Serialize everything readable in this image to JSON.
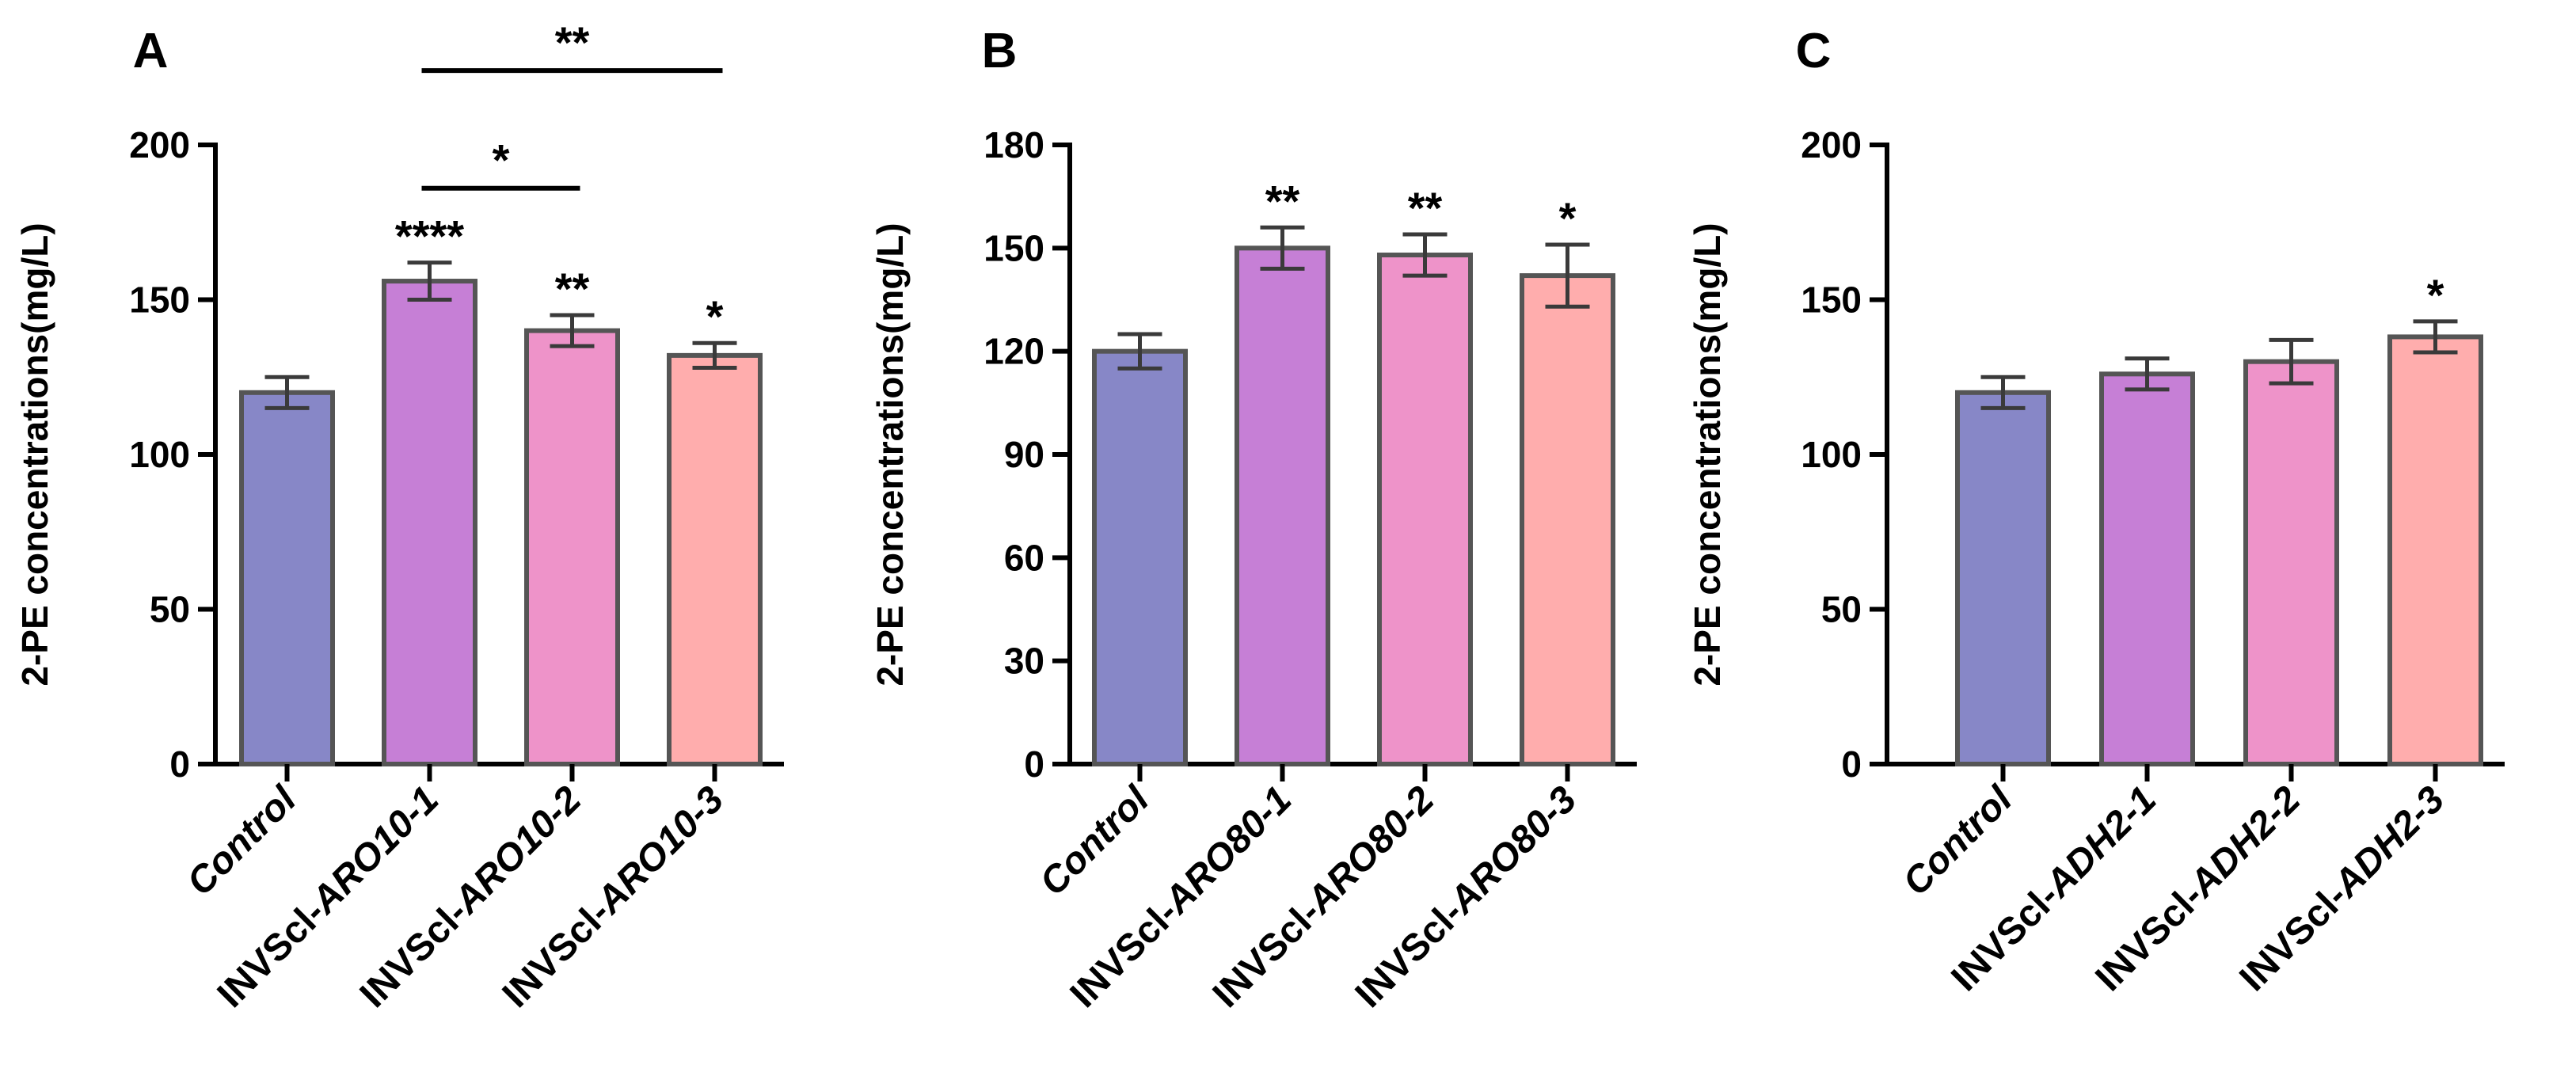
{
  "chart_data": [
    {
      "panel": "A",
      "type": "bar",
      "ylabel": "2-PE concentrations(mg/L)",
      "ylim": [
        0,
        200
      ],
      "yticks": [
        0,
        50,
        100,
        150,
        200
      ],
      "categories": [
        {
          "prefix": "",
          "gene": "Control"
        },
        {
          "prefix": "INVScl-",
          "gene": "ARO10-1"
        },
        {
          "prefix": "INVScl-",
          "gene": "ARO10-2"
        },
        {
          "prefix": "INVScl-",
          "gene": "ARO10-3"
        }
      ],
      "values": [
        120,
        156,
        140,
        132
      ],
      "errors": [
        5,
        6,
        5,
        4
      ],
      "significance": [
        "",
        "****",
        "**",
        "*"
      ],
      "colors": [
        "#8787c7",
        "#c67fd6",
        "#ee93c9",
        "#ffadad"
      ],
      "comparisons": [
        {
          "from": 1,
          "to": 2,
          "label": "*",
          "y": 186
        },
        {
          "from": 1,
          "to": 3,
          "label": "**",
          "y": 224
        }
      ]
    },
    {
      "panel": "B",
      "type": "bar",
      "ylabel": "2-PE concentrations(mg/L)",
      "ylim": [
        0,
        180
      ],
      "yticks": [
        0,
        30,
        60,
        90,
        120,
        150,
        180
      ],
      "categories": [
        {
          "prefix": "",
          "gene": "Control"
        },
        {
          "prefix": "INVScl-",
          "gene": "ARO80-1"
        },
        {
          "prefix": "INVScl-",
          "gene": "ARO80-2"
        },
        {
          "prefix": "INVScl-",
          "gene": "ARO80-3"
        }
      ],
      "values": [
        120,
        150,
        148,
        142
      ],
      "errors": [
        5,
        6,
        6,
        9
      ],
      "significance": [
        "",
        "**",
        "**",
        "*"
      ],
      "colors": [
        "#8787c7",
        "#c67fd6",
        "#ee93c9",
        "#ffadad"
      ],
      "comparisons": []
    },
    {
      "panel": "C",
      "type": "bar",
      "ylabel": "2-PE concentrations(mg/L)",
      "ylim": [
        0,
        200
      ],
      "yticks": [
        0,
        50,
        100,
        150,
        200
      ],
      "categories": [
        {
          "prefix": "",
          "gene": "Control"
        },
        {
          "prefix": "INVScl-",
          "gene": "ADH2-1"
        },
        {
          "prefix": "INVScl-",
          "gene": "ADH2-2"
        },
        {
          "prefix": "INVScl-",
          "gene": "ADH2-3"
        }
      ],
      "values": [
        120,
        126,
        130,
        138
      ],
      "errors": [
        5,
        5,
        7,
        5
      ],
      "significance": [
        "",
        "",
        "",
        "*"
      ],
      "colors": [
        "#8787c7",
        "#c67fd6",
        "#ee93c9",
        "#ffadad"
      ],
      "comparisons": []
    }
  ]
}
